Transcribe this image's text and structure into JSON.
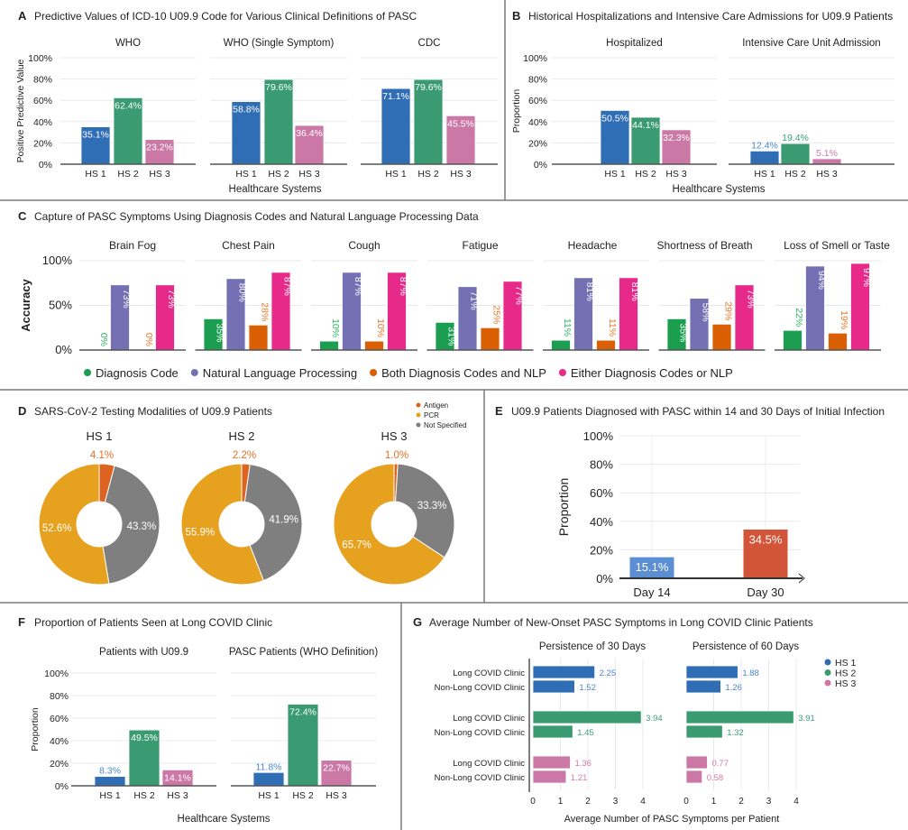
{
  "panels": {
    "A": {
      "letter": "A",
      "title": "Predictive Values of ICD-10 U09.9 Code for Various Clinical Definitions of PASC"
    },
    "B": {
      "letter": "B",
      "title": "Historical Hospitalizations and Intensive Care Admissions for U09.9 Patients"
    },
    "C": {
      "letter": "C",
      "title": "Capture of PASC Symptoms Using Diagnosis Codes and Natural Language Processing Data"
    },
    "D": {
      "letter": "D",
      "title": "SARS-CoV-2 Testing Modalities of U09.9 Patients"
    },
    "E": {
      "letter": "E",
      "title": "U09.9 Patients Diagnosed with PASC within 14 and 30 Days of Initial Infection"
    },
    "F": {
      "letter": "F",
      "title": "Proportion of Patients Seen at Long COVID Clinic"
    },
    "G": {
      "letter": "G",
      "title": "Average Number of New-Onset PASC Symptoms in Long COVID Clinic Patients"
    }
  },
  "colors": {
    "hs1": "#2f6db5",
    "hs2": "#3a9b72",
    "hs3": "#cc78a6"
  },
  "chart_data": [
    {
      "panel": "A",
      "type": "bar",
      "categories": [
        "HS 1",
        "HS 2",
        "HS 3"
      ],
      "ylabel": "Positive Predictive Value",
      "xlabel": "Healthcare Systems",
      "ylim": [
        0,
        100
      ],
      "yticks": [
        0,
        20,
        40,
        60,
        80,
        100
      ],
      "ytick_labels": [
        "0%",
        "20%",
        "40%",
        "60%",
        "80%",
        "100%"
      ],
      "grid": true,
      "subplots": [
        {
          "title": "WHO",
          "values": [
            35.1,
            62.4,
            23.2
          ],
          "labels": [
            "35.1%",
            "62.4%",
            "23.2%"
          ]
        },
        {
          "title": "WHO (Single Symptom)",
          "values": [
            58.8,
            79.6,
            36.4
          ],
          "labels": [
            "58.8%",
            "79.6%",
            "36.4%"
          ]
        },
        {
          "title": "CDC",
          "values": [
            71.1,
            79.6,
            45.5
          ],
          "labels": [
            "71.1%",
            "79.6%",
            "45.5%"
          ]
        }
      ]
    },
    {
      "panel": "B",
      "type": "bar",
      "categories": [
        "HS 1",
        "HS 2",
        "HS 3"
      ],
      "ylabel": "Proportion",
      "xlabel": "Healthcare Systems",
      "ylim": [
        0,
        100
      ],
      "yticks": [
        0,
        20,
        40,
        60,
        80,
        100
      ],
      "ytick_labels": [
        "0%",
        "20%",
        "40%",
        "60%",
        "80%",
        "100%"
      ],
      "grid": true,
      "subplots": [
        {
          "title": "Hospitalized",
          "values": [
            50.5,
            44.1,
            32.3
          ],
          "labels": [
            "50.5%",
            "44.1%",
            "32.3%"
          ]
        },
        {
          "title": "Intensive Care Unit Admission",
          "values": [
            12.4,
            19.4,
            5.1
          ],
          "labels": [
            "12.4%",
            "19.4%",
            "5.1%"
          ]
        }
      ]
    },
    {
      "panel": "C",
      "type": "bar",
      "ylabel": "Accuracy",
      "ylim": [
        0,
        100
      ],
      "yticks": [
        0,
        50,
        100
      ],
      "ytick_labels": [
        "0%",
        "50%",
        "100%"
      ],
      "grid": true,
      "legend": "bottom",
      "series": [
        {
          "name": "Diagnosis Code",
          "color": "#1b9e50"
        },
        {
          "name": "Natural Language Processing",
          "color": "#7570b3"
        },
        {
          "name": "Both Diagnosis Codes and NLP",
          "color": "#d95f02"
        },
        {
          "name": "Either Diagnosis Codes or NLP",
          "color": "#e7298a"
        }
      ],
      "subplots": [
        {
          "title": "Brain Fog",
          "values": [
            0,
            73,
            0,
            73
          ],
          "labels": [
            "0%",
            "73%",
            "0%",
            "73%"
          ]
        },
        {
          "title": "Chest Pain",
          "values": [
            35,
            80,
            28,
            87
          ],
          "labels": [
            "35%",
            "80%",
            "28%",
            "87%"
          ]
        },
        {
          "title": "Cough",
          "values": [
            10,
            87,
            10,
            87
          ],
          "labels": [
            "10%",
            "87%",
            "10%",
            "87%"
          ]
        },
        {
          "title": "Fatigue",
          "values": [
            31,
            71,
            25,
            77
          ],
          "labels": [
            "31%",
            "71%",
            "25%",
            "77%"
          ]
        },
        {
          "title": "Headache",
          "values": [
            11,
            81,
            11,
            81
          ],
          "labels": [
            "11%",
            "81%",
            "11%",
            "81%"
          ]
        },
        {
          "title": "Shortness of Breath",
          "values": [
            35,
            58,
            29,
            73
          ],
          "labels": [
            "35%",
            "58%",
            "29%",
            "73%"
          ]
        },
        {
          "title": "Loss of Smell or Taste",
          "values": [
            22,
            94,
            19,
            97
          ],
          "labels": [
            "22%",
            "94%",
            "19%",
            "97%"
          ]
        }
      ]
    },
    {
      "panel": "D",
      "type": "pie",
      "donut": true,
      "legend": "top-right",
      "series": [
        {
          "name": "Antigen",
          "color": "#dd6420"
        },
        {
          "name": "PCR",
          "color": "#e6a11e"
        },
        {
          "name": "Not Specified",
          "color": "#7f7f7f"
        }
      ],
      "pies": [
        {
          "title": "HS 1",
          "values": [
            4.1,
            52.6,
            43.3
          ],
          "labels": [
            "4.1%",
            "52.6%",
            "43.3%"
          ]
        },
        {
          "title": "HS 2",
          "values": [
            2.2,
            55.9,
            41.9
          ],
          "labels": [
            "2.2%",
            "55.9%",
            "41.9%"
          ]
        },
        {
          "title": "HS 3",
          "values": [
            1.0,
            65.7,
            33.3
          ],
          "labels": [
            "1.0%",
            "65.7%",
            "33.3%"
          ]
        }
      ]
    },
    {
      "panel": "E",
      "type": "bar",
      "categories": [
        "Day 14",
        "Day 30"
      ],
      "values": [
        15.1,
        34.5
      ],
      "labels": [
        "15.1%",
        "34.5%"
      ],
      "colors": [
        "#5b8ed3",
        "#d2553a"
      ],
      "ylabel": "Proportion",
      "ylim": [
        0,
        100
      ],
      "yticks": [
        0,
        20,
        40,
        60,
        80,
        100
      ],
      "ytick_labels": [
        "0%",
        "20%",
        "40%",
        "60%",
        "80%",
        "100%"
      ],
      "grid": true
    },
    {
      "panel": "F",
      "type": "bar",
      "categories": [
        "HS 1",
        "HS 2",
        "HS 3"
      ],
      "ylabel": "Proportion",
      "xlabel": "Healthcare Systems",
      "ylim": [
        0,
        100
      ],
      "yticks": [
        0,
        20,
        40,
        60,
        80,
        100
      ],
      "ytick_labels": [
        "0%",
        "20%",
        "40%",
        "60%",
        "80%",
        "100%"
      ],
      "grid": true,
      "subplots": [
        {
          "title": "Patients with U09.9",
          "values": [
            8.3,
            49.5,
            14.1
          ],
          "labels": [
            "8.3%",
            "49.5%",
            "14.1%"
          ]
        },
        {
          "title": "PASC Patients (WHO Definition)",
          "values": [
            11.8,
            72.4,
            22.7
          ],
          "labels": [
            "11.8%",
            "72.4%",
            "22.7%"
          ]
        }
      ]
    },
    {
      "panel": "G",
      "type": "bar",
      "orientation": "horizontal",
      "xlabel": "Average Number of PASC Symptoms per Patient",
      "xlim": [
        0,
        4
      ],
      "xticks": [
        0,
        1,
        2,
        3,
        4
      ],
      "xtick_labels": [
        "0",
        "1",
        "2",
        "3",
        "4"
      ],
      "grid": true,
      "legend": "right",
      "row_labels": [
        "Long COVID Clinic",
        "Non-Long COVID Clinic",
        "Long COVID Clinic",
        "Non-Long COVID Clinic",
        "Long COVID Clinic",
        "Non-Long COVID Clinic"
      ],
      "series": [
        {
          "name": "HS 1"
        },
        {
          "name": "HS 2"
        },
        {
          "name": "HS 3"
        }
      ],
      "subplots": [
        {
          "title": "Persistence of 30 Days",
          "values": [
            2.25,
            1.52,
            3.94,
            1.45,
            1.36,
            1.21
          ],
          "labels": [
            "2.25",
            "1.52",
            "3.94",
            "1.45",
            "1.36",
            "1.21"
          ]
        },
        {
          "title": "Persistence of 60 Days",
          "values": [
            1.88,
            1.26,
            3.91,
            1.32,
            0.77,
            0.58
          ],
          "labels": [
            "1.88",
            "1.26",
            "3.91",
            "1.32",
            "0.77",
            "0.58"
          ]
        }
      ]
    }
  ]
}
